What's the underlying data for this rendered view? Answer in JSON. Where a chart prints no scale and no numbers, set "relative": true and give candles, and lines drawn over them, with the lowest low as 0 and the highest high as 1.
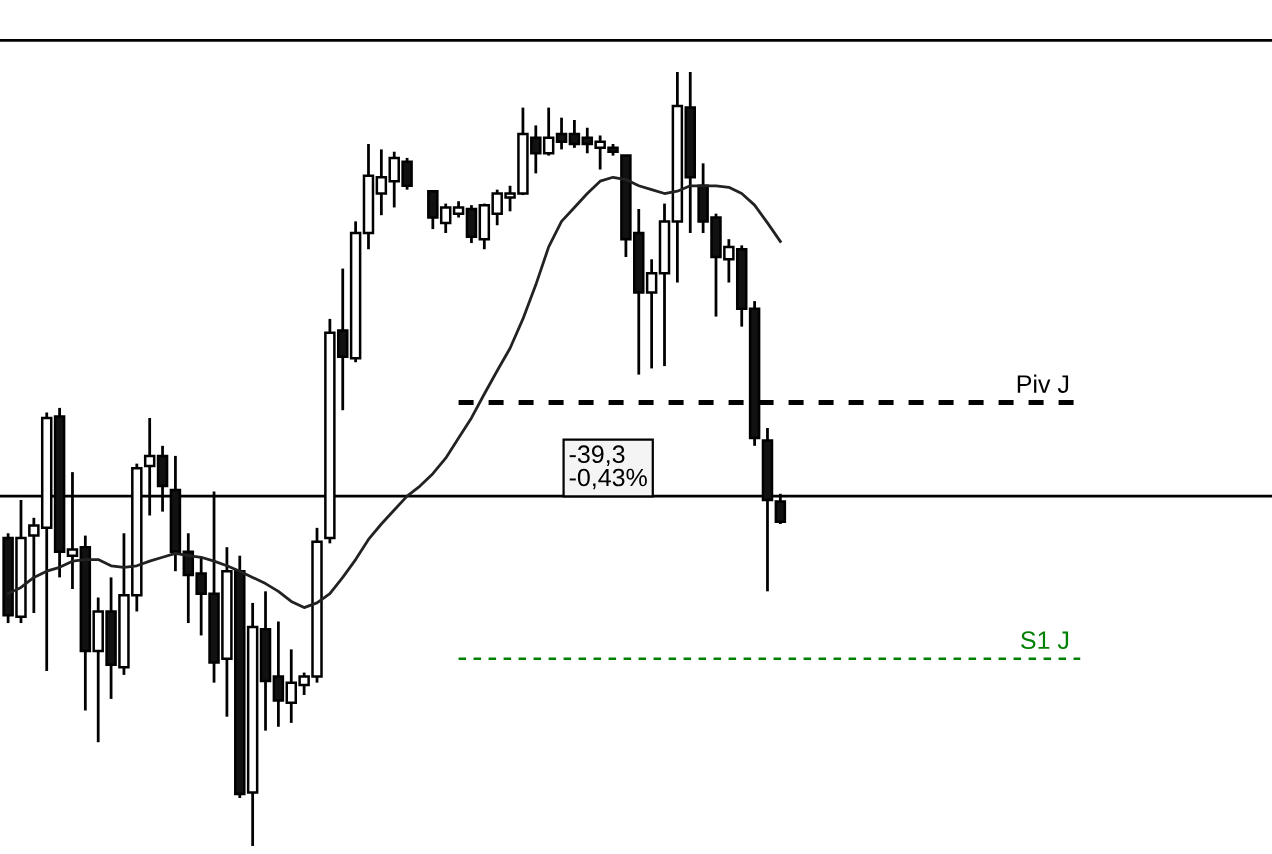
{
  "chart_data": {
    "type": "candlestick",
    "relative": true,
    "categories": [
      null,
      null,
      null,
      null,
      null,
      null,
      null,
      null,
      null,
      null,
      null,
      null,
      null,
      null,
      null,
      null,
      null,
      null,
      null,
      null,
      null,
      null,
      null,
      null,
      null,
      null,
      null,
      null,
      null,
      null,
      null,
      null,
      null,
      null,
      null,
      null,
      null,
      null,
      null,
      null,
      null,
      null,
      null,
      null,
      null,
      null,
      null,
      null,
      null,
      null,
      null,
      null,
      null,
      null,
      null,
      null,
      null,
      null,
      null,
      null,
      null
    ],
    "ohlc": [
      [
        0.398,
        0.404,
        0.288,
        0.298
      ],
      [
        0.296,
        0.447,
        0.288,
        0.398
      ],
      [
        0.401,
        0.424,
        0.301,
        0.414
      ],
      [
        0.411,
        0.56,
        0.226,
        0.553
      ],
      [
        0.555,
        0.566,
        0.347,
        0.38
      ],
      [
        0.375,
        0.483,
        0.332,
        0.383
      ],
      [
        0.386,
        0.401,
        0.175,
        0.252
      ],
      [
        0.252,
        0.321,
        0.134,
        0.303
      ],
      [
        0.303,
        0.347,
        0.19,
        0.234
      ],
      [
        0.231,
        0.404,
        0.221,
        0.324
      ],
      [
        0.324,
        0.494,
        0.303,
        0.488
      ],
      [
        0.491,
        0.553,
        0.427,
        0.504
      ],
      [
        0.504,
        0.517,
        0.432,
        0.465
      ],
      [
        0.46,
        0.504,
        0.355,
        0.38
      ],
      [
        0.38,
        0.404,
        0.288,
        0.35
      ],
      [
        0.352,
        0.373,
        0.272,
        0.326
      ],
      [
        0.326,
        0.458,
        0.211,
        0.237
      ],
      [
        0.242,
        0.386,
        0.167,
        0.355
      ],
      [
        0.355,
        0.375,
        0.062,
        0.067
      ],
      [
        0.069,
        0.314,
        0,
        0.283
      ],
      [
        0.28,
        0.329,
        0.149,
        0.213
      ],
      [
        0.219,
        0.29,
        0.154,
        0.188
      ],
      [
        0.185,
        0.254,
        0.159,
        0.211
      ],
      [
        0.208,
        0.224,
        0.195,
        0.219
      ],
      [
        0.219,
        0.411,
        0.211,
        0.393
      ],
      [
        0.398,
        0.681,
        0.391,
        0.663
      ],
      [
        0.666,
        0.746,
        0.563,
        0.632
      ],
      [
        0.63,
        0.807,
        0.625,
        0.792
      ],
      [
        0.792,
        0.907,
        0.771,
        0.866
      ],
      [
        0.843,
        0.9,
        0.815,
        0.864
      ],
      [
        0.859,
        0.897,
        0.825,
        0.889
      ],
      [
        0.884,
        0.889,
        0.848,
        0.853
      ],
      null,
      [
        0.846,
        0.846,
        0.797,
        0.812
      ],
      [
        0.805,
        0.83,
        0.792,
        0.825
      ],
      [
        0.817,
        0.833,
        0.812,
        0.825
      ],
      [
        0.823,
        0.828,
        0.779,
        0.787
      ],
      [
        0.784,
        0.83,
        0.771,
        0.828
      ],
      [
        0.817,
        0.848,
        0.802,
        0.843
      ],
      [
        0.838,
        0.853,
        0.82,
        0.843
      ],
      [
        0.843,
        0.954,
        0.841,
        0.92
      ],
      [
        0.915,
        0.931,
        0.869,
        0.895
      ],
      [
        0.895,
        0.954,
        0.892,
        0.915
      ],
      [
        0.92,
        0.941,
        0.9,
        0.91
      ],
      [
        0.92,
        0.938,
        0.902,
        0.907
      ],
      [
        0.915,
        0.928,
        0.895,
        0.907
      ],
      [
        0.902,
        0.918,
        0.874,
        0.91
      ],
      [
        0.902,
        0.907,
        0.892,
        0.897
      ],
      [
        0.892,
        0.892,
        0.761,
        0.784
      ],
      [
        0.792,
        0.823,
        0.609,
        0.715
      ],
      [
        0.715,
        0.758,
        0.617,
        0.74
      ],
      [
        0.74,
        0.83,
        0.62,
        0.807
      ],
      [
        0.807,
        1,
        0.728,
        0.956
      ],
      [
        0.954,
        1,
        0.792,
        0.864
      ],
      [
        0.853,
        0.882,
        0.792,
        0.807
      ],
      [
        0.812,
        0.817,
        0.684,
        0.761
      ],
      [
        0.758,
        0.784,
        0.728,
        0.774
      ],
      [
        0.771,
        0.776,
        0.671,
        0.694
      ],
      [
        0.694,
        0.704,
        0.517,
        0.527
      ],
      [
        0.524,
        0.54,
        0.329,
        0.447
      ],
      [
        0.445,
        0.455,
        0.416,
        0.419
      ]
    ],
    "series": [
      {
        "type": "line",
        "color": "#222222",
        "values": [
          0.326,
          0.334,
          0.347,
          0.355,
          0.36,
          0.368,
          0.37,
          0.37,
          0.362,
          0.36,
          0.362,
          0.368,
          0.373,
          0.378,
          0.375,
          0.373,
          0.368,
          0.362,
          0.355,
          0.347,
          0.339,
          0.329,
          0.316,
          0.308,
          0.314,
          0.326,
          0.347,
          0.37,
          0.396,
          0.416,
          0.434,
          0.452,
          0.465,
          0.481,
          0.501,
          0.527,
          0.553,
          0.584,
          0.614,
          0.643,
          0.681,
          0.725,
          0.774,
          0.807,
          0.825,
          0.843,
          0.859,
          0.864,
          0.861,
          0.853,
          0.848,
          0.843,
          0.846,
          0.853,
          0.853,
          0.853,
          0.851,
          0.843,
          0.828,
          0.805,
          0.781
        ]
      }
    ],
    "ref_lines": [
      {
        "axis": "y",
        "value": 1.041,
        "color": "#000000",
        "line_style": "solid"
      },
      {
        "axis": "y",
        "value": 0.452,
        "color": "#000000",
        "line_style": "solid"
      },
      {
        "axis": "y",
        "value": 0.573,
        "label": "Piv J",
        "color": "#000000",
        "line_style": "dashed"
      },
      {
        "axis": "y",
        "value": 0.242,
        "label": "S1 J",
        "color": "#008000",
        "line_style": "dashed"
      }
    ],
    "annotations": [
      "-39,3\n-0,43%"
    ],
    "legend": false
  }
}
